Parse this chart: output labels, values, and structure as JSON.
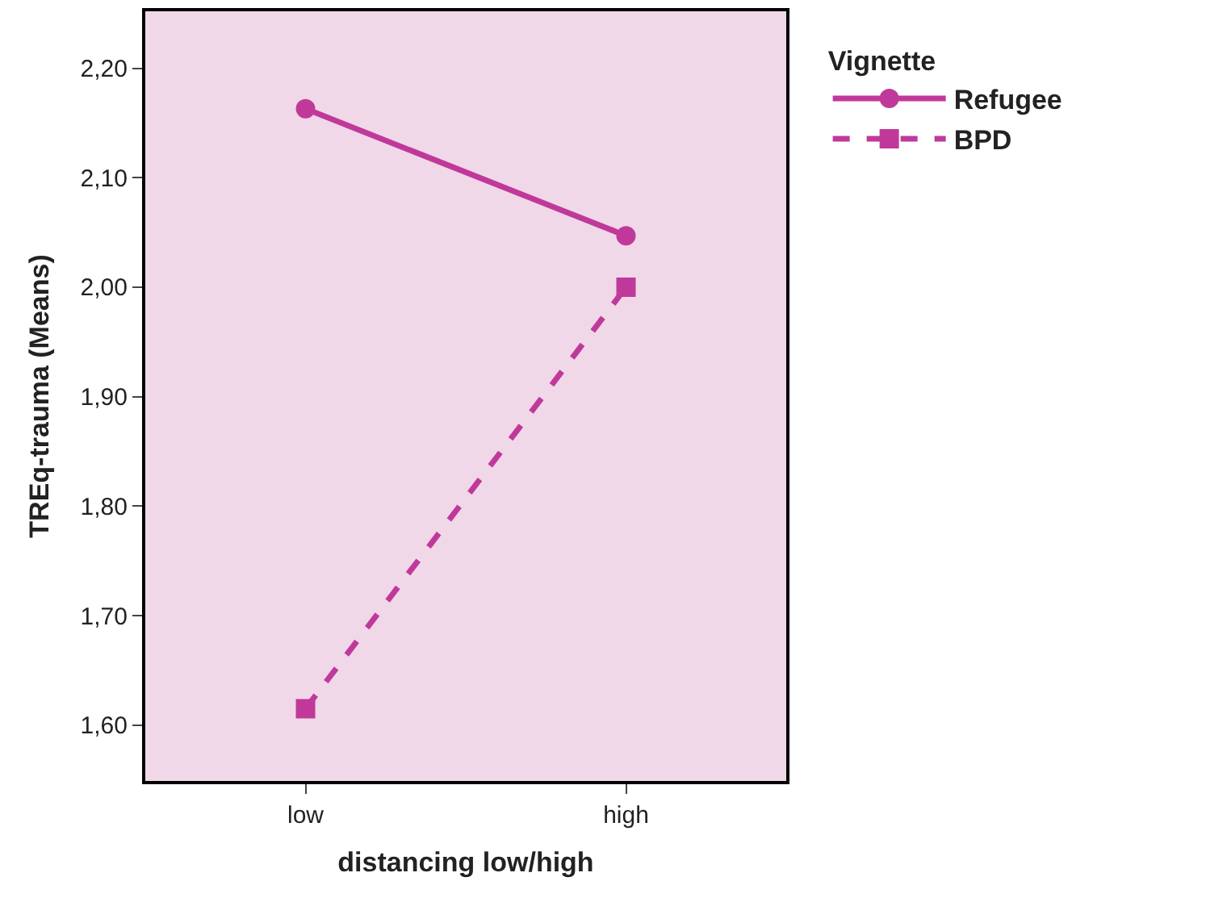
{
  "chart_data": {
    "type": "line",
    "xlabel": "distancing low/high",
    "ylabel": "TREq-trauma (Means)",
    "legend_title": "Vignette",
    "categories": [
      "low",
      "high"
    ],
    "series": [
      {
        "name": "Refugee",
        "color": "#c0399a",
        "values": [
          2.163,
          2.047
        ],
        "marker": "circle",
        "line_style": "solid"
      },
      {
        "name": "BPD",
        "color": "#c0399a",
        "values": [
          1.615,
          2.0
        ],
        "marker": "square",
        "line_style": "dashed"
      }
    ],
    "ylim": [
      1.549,
      2.252
    ],
    "yticks": [
      {
        "value": 1.6,
        "label": "1,60"
      },
      {
        "value": 1.7,
        "label": "1,70"
      },
      {
        "value": 1.8,
        "label": "1,80"
      },
      {
        "value": 1.9,
        "label": "1,90"
      },
      {
        "value": 2.0,
        "label": "2,00"
      },
      {
        "value": 2.1,
        "label": "2,10"
      },
      {
        "value": 2.2,
        "label": "2,20"
      }
    ],
    "grid": false,
    "legend": "top right"
  }
}
